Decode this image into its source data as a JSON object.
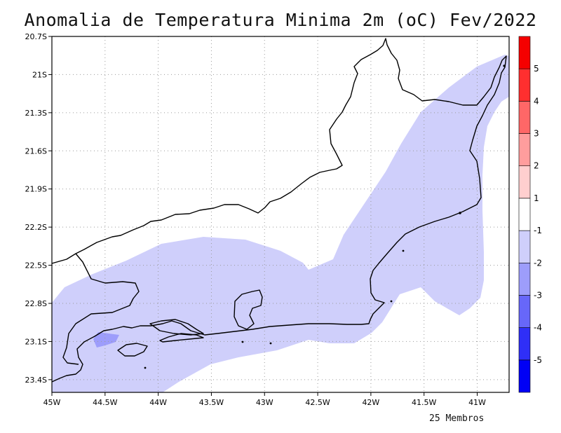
{
  "title": "Anomalia de Temperatura Minima 2m (oC) Fev/2022",
  "footer_note": "25 Membros",
  "map": {
    "lon_range": [
      -45,
      -40.7
    ],
    "lat_range": [
      -23.5,
      -20.7
    ],
    "lon_ticks": [
      {
        "value": -45,
        "label": "45W"
      },
      {
        "value": -44.5,
        "label": "44.5W"
      },
      {
        "value": -44,
        "label": "44W"
      },
      {
        "value": -43.5,
        "label": "43.5W"
      },
      {
        "value": -43,
        "label": "43W"
      },
      {
        "value": -42.5,
        "label": "42.5W"
      },
      {
        "value": -42,
        "label": "42W"
      },
      {
        "value": -41.5,
        "label": "41.5W"
      },
      {
        "value": -41,
        "label": "41W"
      }
    ],
    "lat_ticks": [
      {
        "value": -20.7,
        "label": "20.7S"
      },
      {
        "value": -21.0,
        "label": "21S"
      },
      {
        "value": -21.3,
        "label": "21.3S"
      },
      {
        "value": -21.6,
        "label": "21.6S"
      },
      {
        "value": -21.9,
        "label": "21.9S"
      },
      {
        "value": -22.2,
        "label": "22.2S"
      },
      {
        "value": -22.5,
        "label": "22.5S"
      },
      {
        "value": -22.8,
        "label": "22.8S"
      },
      {
        "value": -23.1,
        "label": "23.1S"
      },
      {
        "value": -23.4,
        "label": "23.4S"
      }
    ],
    "gridlines": "dotted",
    "anomaly_fill_class": "-1 to -2",
    "anomaly_fill_color": "#cfcffb",
    "small_patch_class": "-2 to -3",
    "small_patch_color": "#9d9dfb",
    "coastline_color": "#000000"
  },
  "colorbar": {
    "colors": [
      "#0000f5",
      "#2f2ff7",
      "#6767f9",
      "#9d9dfb",
      "#cfcffb",
      "#ffffff",
      "#ffcfcf",
      "#ff9d9d",
      "#ff6767",
      "#ff2f2f",
      "#f50000"
    ],
    "tick_labels": [
      "-5",
      "-4",
      "-3",
      "-2",
      "-1",
      "1",
      "2",
      "3",
      "4",
      "5"
    ]
  }
}
